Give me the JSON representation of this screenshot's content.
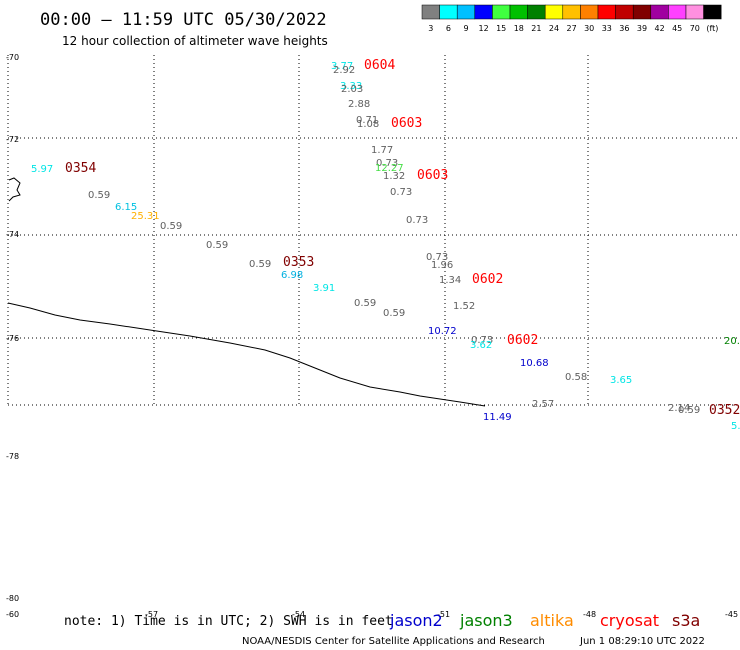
{
  "header": {
    "title": "00:00 – 11:59 UTC 05/30/2022",
    "subtitle": "12 hour collection of altimeter wave heights"
  },
  "legend": {
    "ticks": [
      "3",
      "6",
      "9",
      "12",
      "15",
      "18",
      "21",
      "24",
      "27",
      "30",
      "33",
      "36",
      "39",
      "42",
      "45",
      "70",
      "(ft)"
    ],
    "colors": [
      "#808080",
      "#00ffff",
      "#00c0ff",
      "#0000ff",
      "#40ff40",
      "#00c000",
      "#008000",
      "#ffff00",
      "#ffc000",
      "#ff8000",
      "#ff0000",
      "#c00000",
      "#800000",
      "#a000a0",
      "#ff40ff",
      "#ff90e0",
      "#000000"
    ]
  },
  "map": {
    "lat_labels": [
      "-70",
      "-72",
      "-74",
      "-76",
      "-78",
      "-80"
    ],
    "lon_labels": [
      "-60",
      "-57",
      "-54",
      "-51",
      "-48",
      "-45"
    ],
    "coastline_style": "thin black line",
    "grid": "dotted"
  },
  "points": [
    {
      "text": "3.77",
      "color": "#00e5e5"
    },
    {
      "text": "2.92",
      "color": "#606060"
    },
    {
      "text": "0604",
      "color": "#ff0000",
      "kind": "time"
    },
    {
      "text": "3.33",
      "color": "#00e5e5"
    },
    {
      "text": "2.03",
      "color": "#606060"
    },
    {
      "text": "2.88",
      "color": "#606060"
    },
    {
      "text": "0.71",
      "color": "#606060"
    },
    {
      "text": "1.08",
      "color": "#606060"
    },
    {
      "text": "0603",
      "color": "#ff0000",
      "kind": "time"
    },
    {
      "text": "1.77",
      "color": "#606060"
    },
    {
      "text": "0.73",
      "color": "#606060"
    },
    {
      "text": "12.27",
      "color": "#44dd44"
    },
    {
      "text": "1.32",
      "color": "#606060"
    },
    {
      "text": "0603",
      "color": "#ff0000",
      "kind": "time"
    },
    {
      "text": "0.73",
      "color": "#606060"
    },
    {
      "text": "0.73",
      "color": "#606060"
    },
    {
      "text": "5.97",
      "color": "#00e5e5"
    },
    {
      "text": "0354",
      "color": "#800000",
      "kind": "time"
    },
    {
      "text": "0.59",
      "color": "#606060"
    },
    {
      "text": "6.15",
      "color": "#00c0e0"
    },
    {
      "text": "25.31",
      "color": "#ffb000"
    },
    {
      "text": "0.59",
      "color": "#606060"
    },
    {
      "text": "0.59",
      "color": "#606060"
    },
    {
      "text": "0.59",
      "color": "#606060"
    },
    {
      "text": "0353",
      "color": "#800000",
      "kind": "time"
    },
    {
      "text": "6.98",
      "color": "#00b0e0"
    },
    {
      "text": "3.91",
      "color": "#00e5e5"
    },
    {
      "text": "0.73",
      "color": "#606060"
    },
    {
      "text": "1.96",
      "color": "#606060"
    },
    {
      "text": "1.34",
      "color": "#606060"
    },
    {
      "text": "0602",
      "color": "#ff0000",
      "kind": "time"
    },
    {
      "text": "1.52",
      "color": "#606060"
    },
    {
      "text": "0.59",
      "color": "#606060"
    },
    {
      "text": "0.59",
      "color": "#606060"
    },
    {
      "text": "10.72",
      "color": "#0000cc"
    },
    {
      "text": "0.73",
      "color": "#606060"
    },
    {
      "text": "3.62",
      "color": "#00e5e5"
    },
    {
      "text": "0602",
      "color": "#ff0000",
      "kind": "time"
    },
    {
      "text": "10.68",
      "color": "#0000cc"
    },
    {
      "text": "0.58",
      "color": "#606060"
    },
    {
      "text": "3.65",
      "color": "#00e5e5"
    },
    {
      "text": "2.57",
      "color": "#606060"
    },
    {
      "text": "11.49",
      "color": "#0000cc"
    },
    {
      "text": "2.14",
      "color": "#606060"
    },
    {
      "text": "0.59",
      "color": "#606060"
    },
    {
      "text": "0352",
      "color": "#800000",
      "kind": "time"
    },
    {
      "text": "5.",
      "color": "#00e5e5"
    },
    {
      "text": "20.",
      "color": "#008000"
    }
  ],
  "footer": {
    "note": "note: 1) Time is in UTC; 2) SWH is in feet",
    "satellites": [
      {
        "name": "jason2",
        "color": "#0000cc"
      },
      {
        "name": "jason3",
        "color": "#008000"
      },
      {
        "name": "altika",
        "color": "#ff8c00"
      },
      {
        "name": "cryosat",
        "color": "#ff0000"
      },
      {
        "name": "s3a",
        "color": "#800000"
      }
    ],
    "credit": "NOAA/NESDIS Center for Satellite Applications and Research",
    "timestamp": "Jun  1 08:29:10 UTC 2022"
  }
}
